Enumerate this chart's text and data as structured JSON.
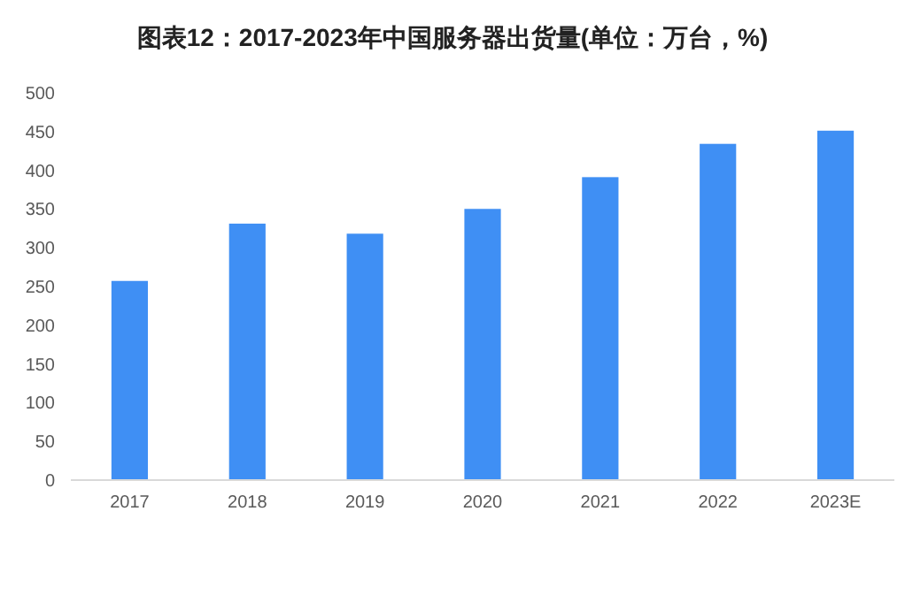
{
  "chart_data": {
    "type": "bar",
    "title": "图表12：2017-2023年中国服务器出货量(单位：万台，%)",
    "categories": [
      "2017",
      "2018",
      "2019",
      "2020",
      "2021",
      "2022",
      "2023E"
    ],
    "values": [
      256,
      330,
      317,
      349,
      390,
      433,
      450
    ],
    "color": "#3f8ff4",
    "ylim": [
      0,
      500
    ],
    "yticks": [
      0,
      50,
      100,
      150,
      200,
      250,
      300,
      350,
      400,
      450,
      500
    ],
    "grid": false
  }
}
